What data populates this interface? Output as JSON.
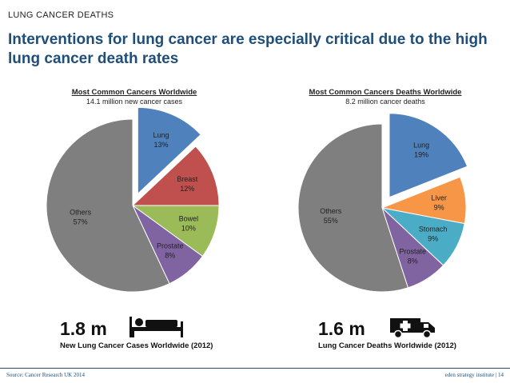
{
  "header": {
    "eyebrow": "LUNG CANCER DEATHS",
    "headline": "Interventions for lung cancer are especially critical due to the high lung cancer death rates"
  },
  "chart_data": [
    {
      "type": "pie",
      "title": "Most Common Cancers Worldwide",
      "subtitle": "14.1 million new cancer cases",
      "slices": [
        {
          "label": "Lung",
          "pct_label": "13%",
          "value": 13,
          "color": "#4f81bd",
          "exploded": true
        },
        {
          "label": "Breast",
          "pct_label": "12%",
          "value": 12,
          "color": "#c0504d",
          "exploded": false
        },
        {
          "label": "Bowel",
          "pct_label": "10%",
          "value": 10,
          "color": "#9bbb59",
          "exploded": false
        },
        {
          "label": "Prostate",
          "pct_label": "8%",
          "value": 8,
          "color": "#8064a2",
          "exploded": false
        },
        {
          "label": "Others",
          "pct_label": "57%",
          "value": 57,
          "color": "#7f7f7f",
          "exploded": false
        }
      ]
    },
    {
      "type": "pie",
      "title": "Most Common Cancers Deaths Worldwide",
      "subtitle": "8.2 million cancer deaths",
      "slices": [
        {
          "label": "Lung",
          "pct_label": "19%",
          "value": 19,
          "color": "#4f81bd",
          "exploded": true
        },
        {
          "label": "Liver",
          "pct_label": "9%",
          "value": 9,
          "color": "#f79646",
          "exploded": false
        },
        {
          "label": "Stomach",
          "pct_label": "9%",
          "value": 9,
          "color": "#4bacc6",
          "exploded": false
        },
        {
          "label": "Prostate",
          "pct_label": "8%",
          "value": 8,
          "color": "#8064a2",
          "exploded": false
        },
        {
          "label": "Others",
          "pct_label": "55%",
          "value": 55,
          "color": "#7f7f7f",
          "exploded": false
        }
      ]
    }
  ],
  "stats": [
    {
      "value": "1.8 m",
      "caption": "New Lung Cancer Cases Worldwide (2012)",
      "icon": "hospital-bed-icon"
    },
    {
      "value": "1.6 m",
      "caption": "Lung Cancer Deaths Worldwide (2012)",
      "icon": "ambulance-icon"
    }
  ],
  "footer": {
    "source": "Source: Cancer Research UK 2014",
    "brand": "eden strategy institute | 14"
  }
}
